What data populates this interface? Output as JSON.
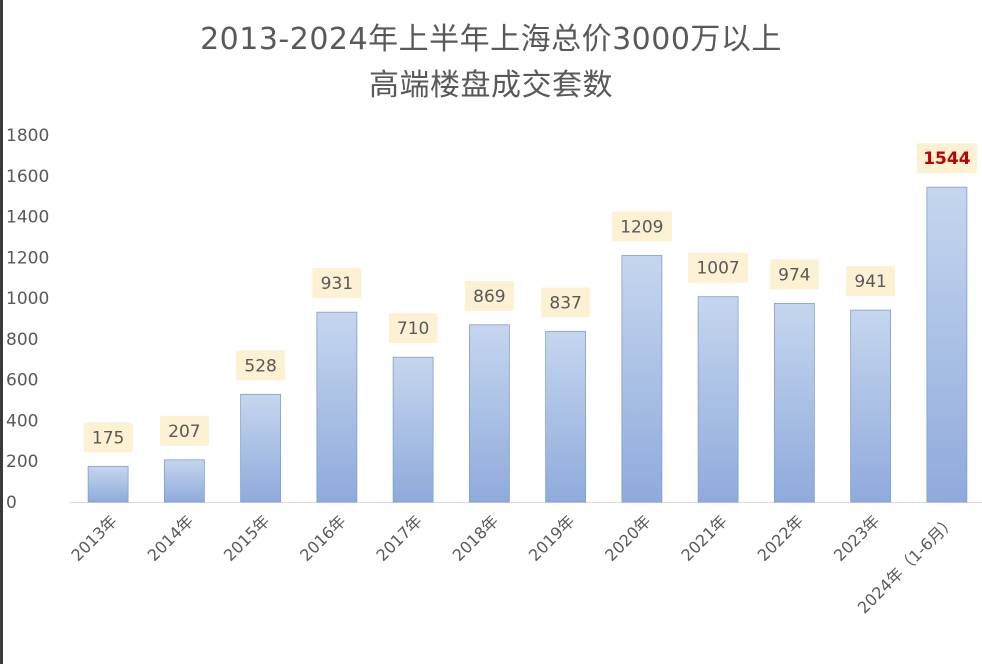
{
  "chart_data": {
    "type": "bar",
    "title_line1": "2013-2024年上半年上海总价3000万以上",
    "title_line2": "高端楼盘成交套数",
    "categories": [
      "2013年",
      "2014年",
      "2015年",
      "2016年",
      "2017年",
      "2018年",
      "2019年",
      "2020年",
      "2021年",
      "2022年",
      "2023年",
      "2024年（1-6月）"
    ],
    "values": [
      175,
      207,
      528,
      931,
      710,
      869,
      837,
      1209,
      1007,
      974,
      941,
      1544
    ],
    "y_ticks": [
      0,
      200,
      400,
      600,
      800,
      1000,
      1200,
      1400,
      1600,
      1800
    ],
    "ylim": [
      0,
      1800
    ],
    "grid": false,
    "legend": "none",
    "colors": {
      "bar_top": "#c5d6ee",
      "bar_bottom": "#8faadc",
      "bar_edge": "#7f9fd0",
      "label_bg": "#fdf1d3",
      "label_text": "#595959",
      "highlight_text": "#c00000",
      "axis": "#d9d9d9",
      "tick_text": "#595959"
    },
    "highlight_index": 11
  }
}
